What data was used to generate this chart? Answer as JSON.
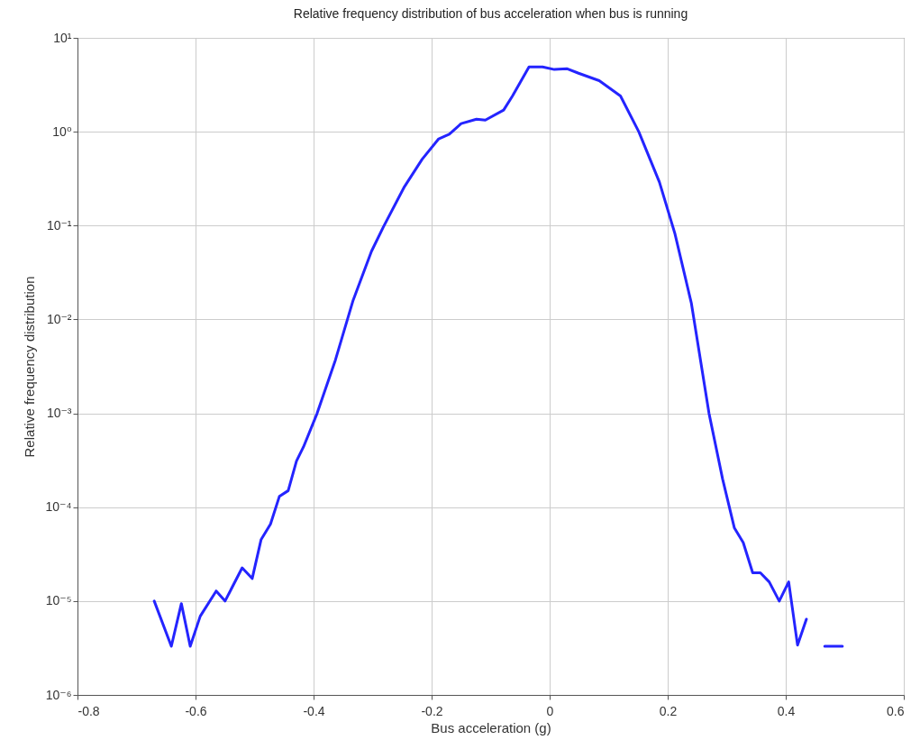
{
  "chart_data": {
    "type": "line",
    "title": "Relative frequency distribution of bus acceleration when bus is running",
    "xlabel": "Bus acceleration (g)",
    "ylabel": "Relative frequency distribution",
    "log": true,
    "grid": true,
    "line_style": "solid",
    "marker": "none",
    "xlim": [
      -0.8,
      0.6
    ],
    "xticks": [
      -0.8,
      -0.6,
      -0.4,
      -0.2,
      0,
      0.2,
      0.4,
      0.6
    ],
    "ylim": [
      1e-06,
      10
    ],
    "yticks": [
      {
        "value": 1e-06,
        "label": "10⁻⁶"
      },
      {
        "value": 1e-05,
        "label": "10⁻⁵"
      },
      {
        "value": 0.0001,
        "label": "10⁻⁴"
      },
      {
        "value": 0.001,
        "label": "10⁻³"
      },
      {
        "value": 0.01,
        "label": "10⁻²"
      },
      {
        "value": 0.1,
        "label": "10⁻¹"
      },
      {
        "value": 1,
        "label": "10⁰"
      },
      {
        "value": 10,
        "label": "10¹"
      }
    ],
    "series": [
      {
        "color": "#2424ff",
        "x": [
          -0.67,
          -0.641,
          -0.624,
          -0.609,
          -0.592,
          -0.565,
          -0.55,
          -0.521,
          -0.504,
          -0.489,
          -0.473,
          -0.458,
          -0.443,
          -0.429,
          -0.417,
          -0.394,
          -0.363,
          -0.333,
          -0.302,
          -0.282,
          -0.246,
          -0.216,
          -0.188,
          -0.17,
          -0.15,
          -0.124,
          -0.109,
          -0.078,
          -0.063,
          -0.035,
          -0.012,
          0.008,
          0.029,
          0.049,
          0.084,
          0.12,
          0.151,
          0.186,
          0.212,
          0.24,
          0.27,
          0.293,
          0.313,
          0.328,
          0.344,
          0.357,
          0.372,
          0.389,
          0.405,
          0.42,
          0.435,
          0.45,
          0.466,
          0.496
        ],
        "values": [
          1e-05,
          3.3e-06,
          9.4e-06,
          3.3e-06,
          6.9e-06,
          1.28e-05,
          1e-05,
          2.26e-05,
          1.74e-05,
          4.5e-05,
          6.6e-05,
          0.00013,
          0.00015,
          0.00031,
          0.00044,
          0.001,
          0.0037,
          0.016,
          0.053,
          0.096,
          0.26,
          0.51,
          0.84,
          0.94,
          1.22,
          1.36,
          1.33,
          1.7,
          2.4,
          4.9,
          4.9,
          4.6,
          4.7,
          4.2,
          3.5,
          2.4,
          1.0,
          0.29,
          0.083,
          0.015,
          0.001,
          0.0002,
          6e-05,
          4.2e-05,
          2e-05,
          2e-05,
          1.6e-05,
          1e-05,
          1.6e-05,
          3.4e-06,
          6.4e-06,
          null,
          3.3e-06,
          3.3e-06
        ]
      }
    ]
  }
}
